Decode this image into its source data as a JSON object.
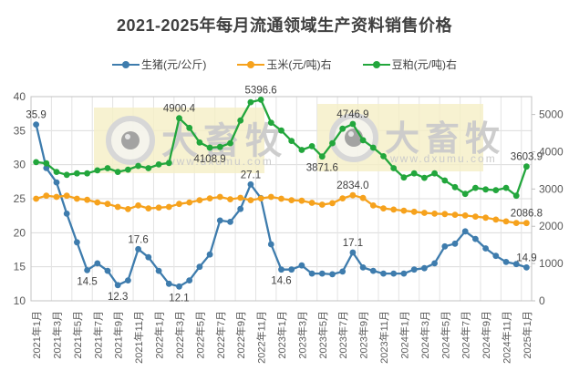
{
  "title": "2021-2025年每月流通领域生产资料销售价格",
  "legend": [
    {
      "label": "生猪(元/公斤)",
      "color": "#3e7cad"
    },
    {
      "label": "玉米(元/吨)右",
      "color": "#f6a21d"
    },
    {
      "label": "豆粕(元/吨)右",
      "color": "#22a63c"
    }
  ],
  "watermark": {
    "text": "大畜牧",
    "url": "www.dxumu.com",
    "box_color": "#f5efc6",
    "text_color": "#cbcbcb"
  },
  "chart_data": {
    "type": "line",
    "title": "2021-2025年每月流通领域生产资料销售价格",
    "grid": true,
    "legend_position": "top",
    "x_tick_labels": [
      "2021年1月",
      "2021年3月",
      "2021年5月",
      "2021年7月",
      "2021年9月",
      "2021年11月",
      "2022年1月",
      "2022年3月",
      "2022年5月",
      "2022年7月",
      "2022年9月",
      "2022年11月",
      "2023年1月",
      "2023年3月",
      "2023年5月",
      "2023年7月",
      "2023年9月",
      "2023年11月",
      "2024年1月",
      "2024年3月",
      "2024年5月",
      "2024年7月",
      "2024年9月",
      "2024年11月",
      "2025年1月"
    ],
    "left_axis": {
      "min": 10,
      "max": 40,
      "ticks": [
        "40",
        "35",
        "30",
        "25",
        "20",
        "15",
        "10"
      ],
      "tick_values": [
        40,
        35,
        30,
        25,
        20,
        15,
        10
      ]
    },
    "right_axis": {
      "min": 0,
      "max": 5480,
      "ticks": [
        "5000",
        "4000",
        "3000",
        "2000",
        "1000",
        "0"
      ],
      "tick_values": [
        5000,
        4000,
        3000,
        2000,
        1000,
        0
      ]
    },
    "series": [
      {
        "name": "生猪(元/公斤)",
        "axis": "left",
        "color": "#3e7cad",
        "values": [
          35.9,
          29.5,
          27.4,
          22.8,
          18.6,
          14.5,
          15.5,
          14.4,
          12.3,
          13.0,
          17.6,
          16.4,
          14.4,
          12.5,
          12.1,
          13.0,
          15.0,
          16.8,
          21.8,
          21.6,
          23.5,
          27.1,
          25.1,
          18.3,
          14.6,
          14.6,
          15.2,
          14.0,
          14.0,
          13.9,
          14.3,
          17.1,
          14.9,
          14.4,
          14.0,
          14.0,
          14.0,
          14.6,
          14.8,
          15.5,
          18.0,
          18.4,
          20.2,
          19.1,
          17.7,
          16.6,
          15.7,
          15.4,
          14.9
        ],
        "point_labels": [
          {
            "index": 0,
            "text": "35.9",
            "position": "above"
          },
          {
            "index": 5,
            "text": "14.5",
            "position": "below"
          },
          {
            "index": 8,
            "text": "12.3",
            "position": "below"
          },
          {
            "index": 10,
            "text": "17.6",
            "position": "above"
          },
          {
            "index": 14,
            "text": "12.1",
            "position": "below"
          },
          {
            "index": 21,
            "text": "27.1",
            "position": "above"
          },
          {
            "index": 24,
            "text": "14.6",
            "position": "below"
          },
          {
            "index": 31,
            "text": "17.1",
            "position": "above"
          },
          {
            "index": 48,
            "text": "14.9",
            "position": "above"
          }
        ]
      },
      {
        "name": "玉米(元/吨)右",
        "axis": "right",
        "color": "#f6a21d",
        "values": [
          2740,
          2820,
          2790,
          2820,
          2740,
          2710,
          2640,
          2600,
          2520,
          2460,
          2560,
          2480,
          2500,
          2520,
          2600,
          2640,
          2700,
          2750,
          2790,
          2725,
          2765,
          2700,
          2750,
          2790,
          2740,
          2700,
          2685,
          2630,
          2580,
          2620,
          2750,
          2834.0,
          2760,
          2560,
          2480,
          2450,
          2420,
          2390,
          2360,
          2340,
          2330,
          2310,
          2290,
          2260,
          2230,
          2180,
          2130,
          2090,
          2086.8
        ],
        "point_labels": [
          {
            "index": 31,
            "text": "2834.0",
            "position": "above"
          },
          {
            "index": 48,
            "text": "2086.8",
            "position": "above"
          }
        ]
      },
      {
        "name": "豆粕(元/吨)右",
        "axis": "right",
        "color": "#22a63c",
        "values": [
          3720,
          3690,
          3460,
          3380,
          3420,
          3420,
          3500,
          3560,
          3460,
          3520,
          3620,
          3560,
          3660,
          3700,
          4900.4,
          4640,
          4250,
          4108.9,
          4130,
          4230,
          4840,
          5330,
          5396.6,
          4780,
          4570,
          4290,
          4050,
          4150,
          3871.6,
          4230,
          4620,
          4746.9,
          4310,
          4110,
          3880,
          3560,
          3310,
          3420,
          3300,
          3420,
          3230,
          3050,
          2870,
          3030,
          2990,
          2970,
          3030,
          2820,
          3603.9
        ],
        "point_labels": [
          {
            "index": 14,
            "text": "4900.4",
            "position": "above"
          },
          {
            "index": 17,
            "text": "4108.9",
            "position": "below"
          },
          {
            "index": 22,
            "text": "5396.6",
            "position": "above"
          },
          {
            "index": 28,
            "text": "3871.6",
            "position": "below"
          },
          {
            "index": 31,
            "text": "4746.9",
            "position": "above"
          },
          {
            "index": 48,
            "text": "3603.9",
            "position": "above"
          }
        ]
      }
    ]
  }
}
